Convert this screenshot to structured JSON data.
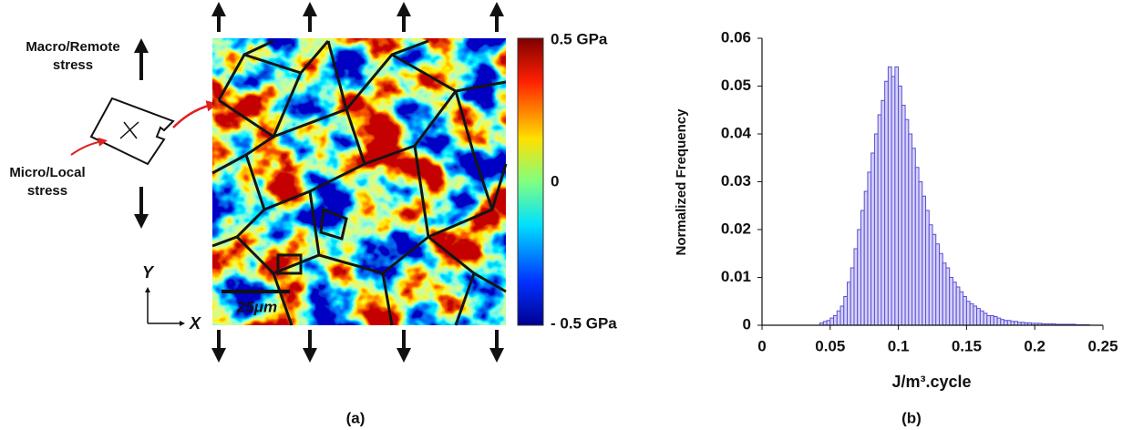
{
  "panel_a": {
    "macro_label": [
      "Macro/Remote",
      "stress"
    ],
    "micro_label": [
      "Micro/Local",
      "stress"
    ],
    "axis_y": "Y",
    "axis_x": "X",
    "scale_bar": "25μm",
    "colorbar_labels": [
      "0.5 GPa",
      "0",
      "- 0.5 GPa"
    ],
    "caption": "(a)"
  },
  "chart_data": {
    "type": "histogram",
    "ylabel": "Normalized Frequency",
    "xlabel": "J/m³.cycle",
    "caption": "(b)",
    "color": "#5a4fd8",
    "fill": "#d6d2f7",
    "xlim": [
      0,
      0.25
    ],
    "ylim": [
      0,
      0.06
    ],
    "xticks": [
      0,
      0.05,
      0.1,
      0.15,
      0.2,
      0.25
    ],
    "yticks": [
      0,
      0.01,
      0.02,
      0.03,
      0.04,
      0.05,
      0.06
    ],
    "grid": false,
    "bins": [
      0.04,
      0.0425,
      0.045,
      0.0475,
      0.05,
      0.0525,
      0.055,
      0.0575,
      0.06,
      0.0625,
      0.065,
      0.0675,
      0.07,
      0.0725,
      0.075,
      0.0775,
      0.08,
      0.0825,
      0.085,
      0.0875,
      0.09,
      0.0925,
      0.095,
      0.0975,
      0.1,
      0.1025,
      0.105,
      0.1075,
      0.11,
      0.1125,
      0.115,
      0.1175,
      0.12,
      0.1225,
      0.125,
      0.1275,
      0.13,
      0.1325,
      0.135,
      0.1375,
      0.14,
      0.1425,
      0.145,
      0.1475,
      0.15,
      0.1525,
      0.155,
      0.1575,
      0.16,
      0.1625,
      0.165,
      0.1675,
      0.17,
      0.1725,
      0.175,
      0.1775,
      0.18,
      0.1825,
      0.185,
      0.1875,
      0.19,
      0.1925,
      0.195,
      0.1975,
      0.2,
      0.2025,
      0.205,
      0.2075,
      0.21,
      0.2125,
      0.215,
      0.2175,
      0.22,
      0.2225,
      0.225,
      0.2275,
      0.23,
      0.2325,
      0.235,
      0.2375,
      0.24
    ],
    "values": [
      0,
      0.0005,
      0.0008,
      0.001,
      0.0015,
      0.002,
      0.003,
      0.004,
      0.006,
      0.009,
      0.012,
      0.016,
      0.02,
      0.024,
      0.028,
      0.032,
      0.036,
      0.04,
      0.044,
      0.047,
      0.051,
      0.054,
      0.052,
      0.054,
      0.05,
      0.046,
      0.043,
      0.04,
      0.037,
      0.033,
      0.03,
      0.027,
      0.024,
      0.021,
      0.019,
      0.017,
      0.015,
      0.013,
      0.012,
      0.01,
      0.009,
      0.008,
      0.007,
      0.006,
      0.005,
      0.0045,
      0.004,
      0.0035,
      0.003,
      0.0025,
      0.002,
      0.002,
      0.0018,
      0.0015,
      0.0012,
      0.001,
      0.001,
      0.0008,
      0.0008,
      0.0006,
      0.0006,
      0.0005,
      0.0005,
      0.0004,
      0.0004,
      0.0004,
      0.0003,
      0.0003,
      0.0003,
      0.0003,
      0.0002,
      0.0002,
      0.0002,
      0.0002,
      0.0002,
      0.0002,
      0.0001,
      0.0001,
      0.0001,
      0.0001
    ]
  }
}
